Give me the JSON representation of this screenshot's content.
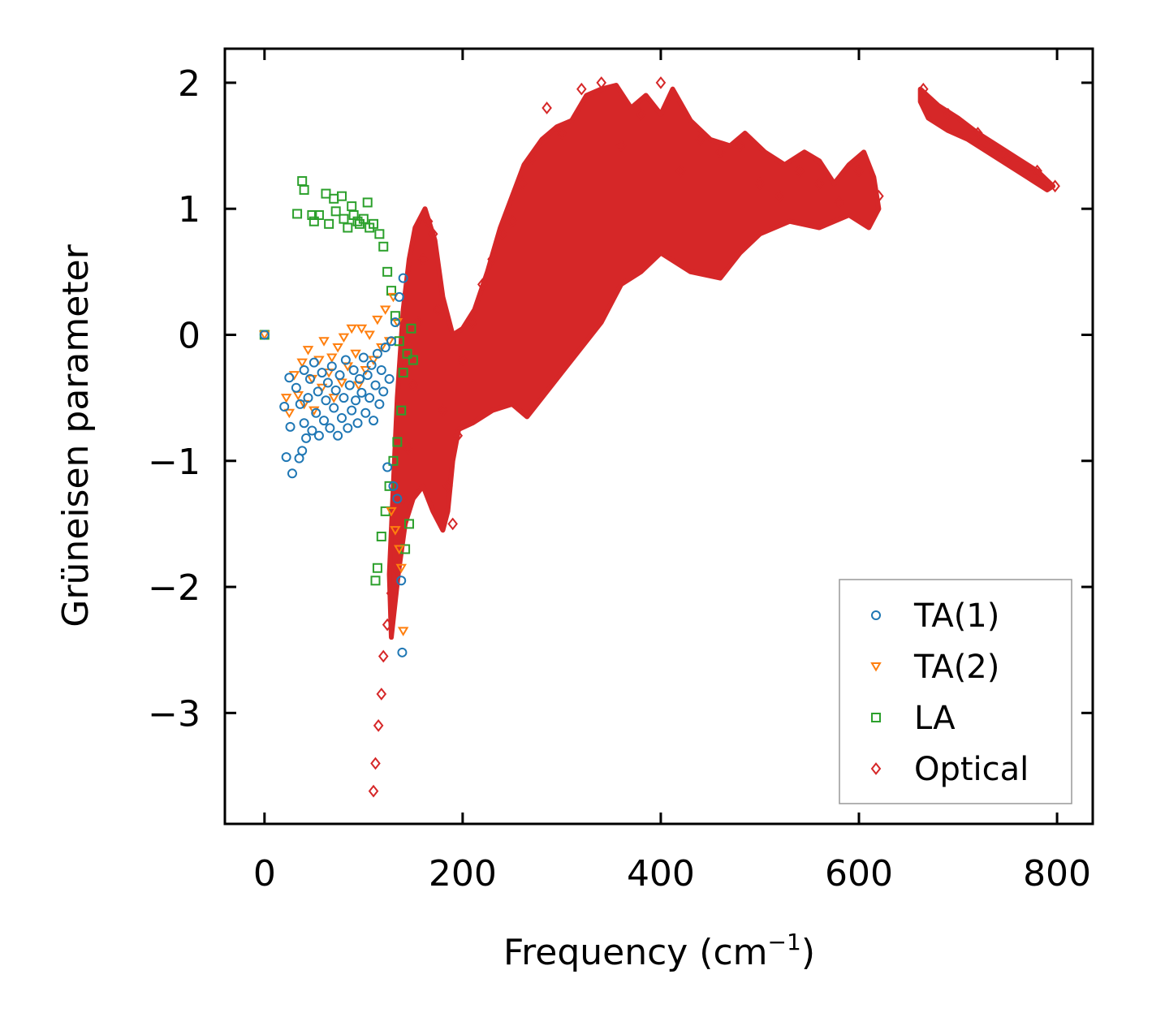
{
  "chart_data": {
    "type": "scatter",
    "title": "",
    "xlabel": "Frequency (cm",
    "xlabel_sup": "−1",
    "xlabel_suffix": ")",
    "ylabel": "Grüneisen parameter",
    "xlim": [
      -40,
      836
    ],
    "ylim": [
      -3.88,
      2.27
    ],
    "xticks": [
      0,
      200,
      400,
      600,
      800
    ],
    "xtick_labels": [
      "0",
      "200",
      "400",
      "600",
      "800"
    ],
    "yticks": [
      -3,
      -2,
      -1,
      0,
      1,
      2
    ],
    "ytick_labels": [
      "−3",
      "−2",
      "−1",
      "0",
      "1",
      "2"
    ],
    "legend_position": "lower-right",
    "series": [
      {
        "name": "TA(1)",
        "marker": "circle",
        "color": "#1f77b4",
        "points": [
          [
            0,
            0
          ],
          [
            20,
            -0.57
          ],
          [
            22,
            -0.97
          ],
          [
            25,
            -0.34
          ],
          [
            26,
            -0.73
          ],
          [
            28,
            -1.1
          ],
          [
            32,
            -0.42
          ],
          [
            35,
            -0.98
          ],
          [
            36,
            -0.55
          ],
          [
            38,
            -0.92
          ],
          [
            40,
            -0.28
          ],
          [
            40,
            -0.7
          ],
          [
            42,
            -0.82
          ],
          [
            44,
            -0.5
          ],
          [
            46,
            -0.35
          ],
          [
            48,
            -0.76
          ],
          [
            50,
            -0.22
          ],
          [
            52,
            -0.62
          ],
          [
            54,
            -0.45
          ],
          [
            55,
            -0.8
          ],
          [
            58,
            -0.3
          ],
          [
            60,
            -0.68
          ],
          [
            62,
            -0.52
          ],
          [
            64,
            -0.38
          ],
          [
            66,
            -0.74
          ],
          [
            68,
            -0.25
          ],
          [
            70,
            -0.58
          ],
          [
            72,
            -0.44
          ],
          [
            74,
            -0.8
          ],
          [
            76,
            -0.32
          ],
          [
            78,
            -0.66
          ],
          [
            80,
            -0.5
          ],
          [
            82,
            -0.2
          ],
          [
            84,
            -0.74
          ],
          [
            86,
            -0.4
          ],
          [
            88,
            -0.6
          ],
          [
            90,
            -0.28
          ],
          [
            92,
            -0.52
          ],
          [
            94,
            -0.7
          ],
          [
            96,
            -0.35
          ],
          [
            98,
            -0.46
          ],
          [
            100,
            -0.18
          ],
          [
            102,
            -0.62
          ],
          [
            104,
            -0.32
          ],
          [
            106,
            -0.5
          ],
          [
            108,
            -0.24
          ],
          [
            110,
            -0.68
          ],
          [
            112,
            -0.4
          ],
          [
            114,
            -0.15
          ],
          [
            116,
            -0.55
          ],
          [
            118,
            -0.28
          ],
          [
            120,
            -0.45
          ],
          [
            122,
            -0.1
          ],
          [
            124,
            -1.05
          ],
          [
            126,
            -0.35
          ],
          [
            128,
            -0.05
          ],
          [
            130,
            -1.2
          ],
          [
            132,
            0.1
          ],
          [
            134,
            -1.3
          ],
          [
            136,
            0.3
          ],
          [
            138,
            -1.95
          ],
          [
            139,
            -2.52
          ],
          [
            140,
            0.45
          ]
        ]
      },
      {
        "name": "TA(2)",
        "marker": "triangle-down",
        "color": "#ff7f0e",
        "points": [
          [
            0,
            0
          ],
          [
            22,
            -0.5
          ],
          [
            25,
            -0.62
          ],
          [
            30,
            -0.32
          ],
          [
            34,
            -0.48
          ],
          [
            38,
            -0.22
          ],
          [
            40,
            -0.55
          ],
          [
            44,
            -0.12
          ],
          [
            48,
            -0.35
          ],
          [
            50,
            -0.6
          ],
          [
            55,
            -0.2
          ],
          [
            58,
            -0.42
          ],
          [
            60,
            -0.05
          ],
          [
            65,
            -0.3
          ],
          [
            68,
            -0.18
          ],
          [
            70,
            -0.5
          ],
          [
            74,
            -0.1
          ],
          [
            78,
            -0.38
          ],
          [
            80,
            -0.02
          ],
          [
            84,
            -0.25
          ],
          [
            88,
            0.05
          ],
          [
            92,
            -0.15
          ],
          [
            95,
            -0.4
          ],
          [
            98,
            0.05
          ],
          [
            102,
            -0.28
          ],
          [
            106,
            0.0
          ],
          [
            110,
            -0.2
          ],
          [
            114,
            0.12
          ],
          [
            118,
            -0.1
          ],
          [
            122,
            0.2
          ],
          [
            126,
            -0.05
          ],
          [
            128,
            -1.4
          ],
          [
            130,
            0.3
          ],
          [
            132,
            -1.55
          ],
          [
            134,
            0.1
          ],
          [
            136,
            -1.7
          ],
          [
            138,
            -1.85
          ],
          [
            140,
            -2.35
          ]
        ]
      },
      {
        "name": "LA",
        "marker": "square",
        "color": "#2ca02c",
        "points": [
          [
            0,
            0
          ],
          [
            33,
            0.96
          ],
          [
            38,
            1.22
          ],
          [
            40,
            1.15
          ],
          [
            48,
            0.95
          ],
          [
            50,
            0.9
          ],
          [
            55,
            0.95
          ],
          [
            62,
            1.12
          ],
          [
            65,
            0.88
          ],
          [
            70,
            1.08
          ],
          [
            72,
            0.98
          ],
          [
            78,
            1.1
          ],
          [
            80,
            0.92
          ],
          [
            84,
            0.85
          ],
          [
            88,
            1.02
          ],
          [
            90,
            0.95
          ],
          [
            94,
            0.9
          ],
          [
            96,
            0.88
          ],
          [
            100,
            0.92
          ],
          [
            104,
            1.05
          ],
          [
            106,
            0.85
          ],
          [
            110,
            0.88
          ],
          [
            112,
            -1.95
          ],
          [
            114,
            -1.85
          ],
          [
            116,
            0.8
          ],
          [
            118,
            -1.6
          ],
          [
            120,
            0.7
          ],
          [
            122,
            -1.4
          ],
          [
            124,
            0.5
          ],
          [
            126,
            -1.2
          ],
          [
            128,
            0.35
          ],
          [
            130,
            -1.0
          ],
          [
            132,
            0.15
          ],
          [
            134,
            -0.85
          ],
          [
            136,
            -0.05
          ],
          [
            138,
            -0.6
          ],
          [
            140,
            -0.3
          ],
          [
            142,
            -1.7
          ],
          [
            144,
            -0.15
          ],
          [
            146,
            -1.5
          ],
          [
            148,
            0.05
          ],
          [
            150,
            -0.2
          ]
        ]
      },
      {
        "name": "Optical",
        "marker": "diamond",
        "color": "#d62728",
        "points": [
          [
            110,
            -3.62
          ],
          [
            112,
            -3.4
          ],
          [
            115,
            -3.1
          ],
          [
            118,
            -2.85
          ],
          [
            120,
            -2.55
          ],
          [
            124,
            -2.3
          ],
          [
            128,
            -2.05
          ],
          [
            132,
            -1.85
          ],
          [
            136,
            -1.6
          ],
          [
            140,
            -1.3
          ],
          [
            145,
            -0.9
          ],
          [
            150,
            -0.4
          ],
          [
            155,
            0.1
          ],
          [
            160,
            0.6
          ],
          [
            165,
            0.9
          ],
          [
            170,
            0.8
          ],
          [
            175,
            0.2
          ],
          [
            180,
            -0.6
          ],
          [
            185,
            -1.2
          ],
          [
            190,
            -1.5
          ],
          [
            195,
            -0.8
          ],
          [
            200,
            -0.2
          ],
          [
            210,
            0.1
          ],
          [
            220,
            0.4
          ],
          [
            230,
            0.6
          ],
          [
            240,
            0.8
          ],
          [
            250,
            0.9
          ],
          [
            260,
            1.2
          ],
          [
            270,
            1.4
          ],
          [
            285,
            1.8
          ],
          [
            300,
            1.6
          ],
          [
            320,
            1.95
          ],
          [
            340,
            2.0
          ],
          [
            360,
            1.5
          ],
          [
            380,
            1.75
          ],
          [
            400,
            2.0
          ],
          [
            420,
            1.3
          ],
          [
            440,
            1.55
          ],
          [
            460,
            1.45
          ],
          [
            480,
            1.5
          ],
          [
            500,
            1.2
          ],
          [
            520,
            1.1
          ],
          [
            540,
            1.3
          ],
          [
            560,
            1.2
          ],
          [
            580,
            1.05
          ],
          [
            600,
            1.3
          ],
          [
            620,
            1.1
          ],
          [
            665,
            1.95
          ],
          [
            690,
            1.75
          ],
          [
            720,
            1.6
          ],
          [
            750,
            1.4
          ],
          [
            780,
            1.3
          ],
          [
            798,
            1.18
          ]
        ],
        "bands": [
          [
            [
              128,
              -2.4
            ],
            [
              135,
              -1.9
            ],
            [
              142,
              -1.5
            ],
            [
              150,
              -1.3
            ],
            [
              160,
              -1.2
            ],
            [
              170,
              -1.4
            ],
            [
              180,
              -1.55
            ],
            [
              185,
              -1.4
            ],
            [
              190,
              -1.0
            ],
            [
              196,
              -0.75
            ],
            [
              210,
              -0.7
            ],
            [
              230,
              -0.6
            ],
            [
              250,
              -0.55
            ],
            [
              265,
              -0.65
            ],
            [
              280,
              -0.5
            ],
            [
              300,
              -0.3
            ],
            [
              320,
              -0.1
            ],
            [
              340,
              0.1
            ],
            [
              360,
              0.4
            ],
            [
              380,
              0.5
            ],
            [
              400,
              0.65
            ],
            [
              430,
              0.5
            ],
            [
              460,
              0.45
            ],
            [
              480,
              0.65
            ],
            [
              500,
              0.8
            ],
            [
              530,
              0.9
            ],
            [
              560,
              0.85
            ],
            [
              590,
              0.95
            ],
            [
              610,
              0.85
            ],
            [
              620,
              1.0
            ],
            [
              615,
              1.25
            ],
            [
              605,
              1.45
            ],
            [
              590,
              1.35
            ],
            [
              575,
              1.2
            ],
            [
              560,
              1.38
            ],
            [
              545,
              1.45
            ],
            [
              525,
              1.35
            ],
            [
              505,
              1.45
            ],
            [
              485,
              1.6
            ],
            [
              470,
              1.5
            ],
            [
              450,
              1.55
            ],
            [
              430,
              1.7
            ],
            [
              412,
              1.95
            ],
            [
              400,
              1.75
            ],
            [
              385,
              1.9
            ],
            [
              370,
              1.8
            ],
            [
              355,
              1.98
            ],
            [
              340,
              1.95
            ],
            [
              325,
              1.9
            ],
            [
              310,
              1.7
            ],
            [
              295,
              1.65
            ],
            [
              280,
              1.55
            ],
            [
              262,
              1.35
            ],
            [
              250,
              1.1
            ],
            [
              238,
              0.85
            ],
            [
              225,
              0.5
            ],
            [
              212,
              0.2
            ],
            [
              200,
              0.05
            ],
            [
              190,
              0.0
            ],
            [
              180,
              0.3
            ],
            [
              172,
              0.75
            ],
            [
              162,
              1.0
            ],
            [
              152,
              0.85
            ],
            [
              146,
              0.6
            ],
            [
              140,
              0.2
            ],
            [
              134,
              -0.5
            ],
            [
              130,
              -1.2
            ],
            [
              126,
              -1.9
            ]
          ],
          [
            [
              662,
              1.95
            ],
            [
              680,
              1.82
            ],
            [
              700,
              1.72
            ],
            [
              720,
              1.6
            ],
            [
              740,
              1.5
            ],
            [
              760,
              1.4
            ],
            [
              780,
              1.3
            ],
            [
              796,
              1.18
            ],
            [
              790,
              1.15
            ],
            [
              770,
              1.25
            ],
            [
              750,
              1.35
            ],
            [
              730,
              1.45
            ],
            [
              710,
              1.55
            ],
            [
              690,
              1.62
            ],
            [
              670,
              1.72
            ],
            [
              662,
              1.85
            ]
          ]
        ]
      }
    ]
  }
}
